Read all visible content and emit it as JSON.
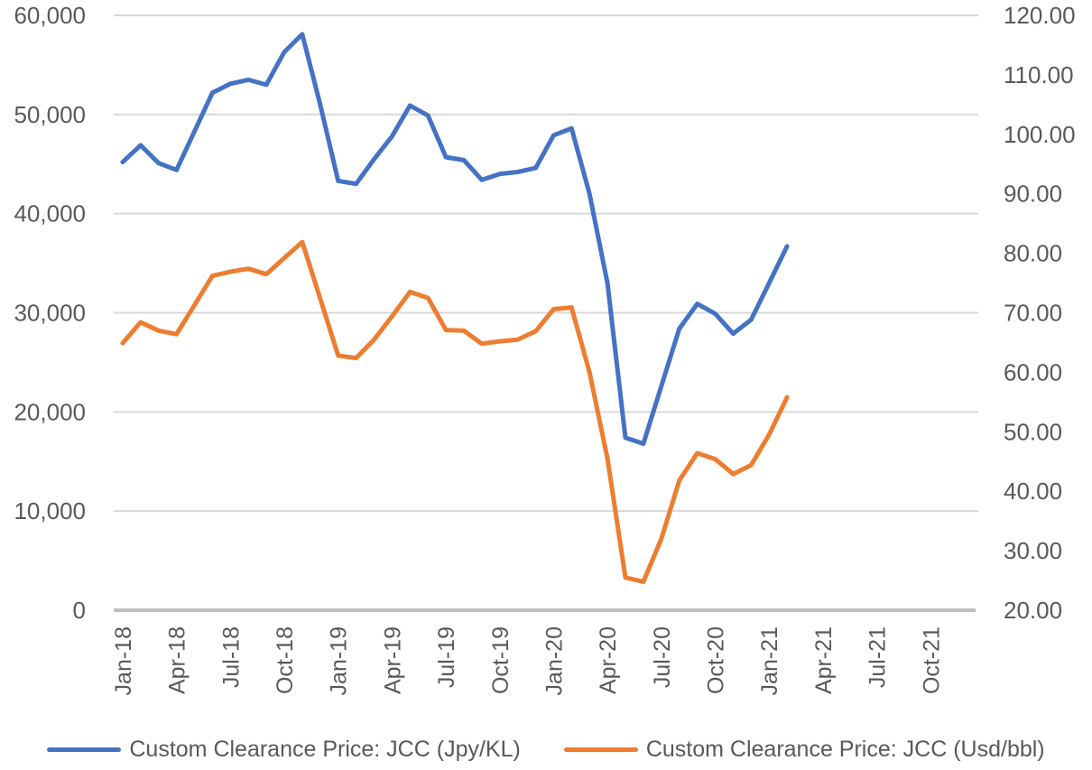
{
  "chart_data": {
    "type": "line",
    "categories": [
      "Jan-18",
      "Feb-18",
      "Mar-18",
      "Apr-18",
      "May-18",
      "Jun-18",
      "Jul-18",
      "Aug-18",
      "Sep-18",
      "Oct-18",
      "Nov-18",
      "Dec-18",
      "Jan-19",
      "Feb-19",
      "Mar-19",
      "Apr-19",
      "May-19",
      "Jun-19",
      "Jul-19",
      "Aug-19",
      "Sep-19",
      "Oct-19",
      "Nov-19",
      "Dec-19",
      "Jan-20",
      "Feb-20",
      "Mar-20",
      "Apr-20",
      "May-20",
      "Jun-20",
      "Jul-20",
      "Aug-20",
      "Sep-20",
      "Oct-20",
      "Nov-20",
      "Dec-20",
      "Jan-21",
      "Feb-21",
      "Mar-21",
      "Apr-21",
      "May-21",
      "Jun-21",
      "Jul-21",
      "Aug-21",
      "Sep-21",
      "Oct-21",
      "Nov-21",
      "Dec-21"
    ],
    "series": [
      {
        "name": "Custom Clearance Price: JCC (Jpy/KL)",
        "axis": "left",
        "color": "#4472C4",
        "values": [
          45200,
          46900,
          45100,
          44400,
          48300,
          52200,
          53100,
          53500,
          53000,
          56300,
          58100,
          51000,
          43300,
          43000,
          45500,
          47800,
          50900,
          49900,
          45700,
          45400,
          43400,
          44000,
          44200,
          44600,
          47900,
          48600,
          42000,
          33000,
          17400,
          16800,
          22600,
          28400,
          30900,
          29900,
          27900,
          29300,
          33000,
          36700
        ]
      },
      {
        "name": "Custom Clearance Price: JCC (Usd/bbl)",
        "axis": "right",
        "color": "#ED7D31",
        "values": [
          64.9,
          68.4,
          67.0,
          66.4,
          71.3,
          76.2,
          76.9,
          77.4,
          76.5,
          79.2,
          81.9,
          72.4,
          62.8,
          62.4,
          65.5,
          69.4,
          73.5,
          72.5,
          67.1,
          67.0,
          64.8,
          65.2,
          65.5,
          66.9,
          70.6,
          70.9,
          60.0,
          45.5,
          25.5,
          24.8,
          32.0,
          41.8,
          46.4,
          45.4,
          42.9,
          44.4,
          49.5,
          55.8
        ]
      }
    ],
    "left_axis": {
      "min": 0,
      "max": 60000,
      "step": 10000,
      "tick_labels": [
        "60,000",
        "50,000",
        "40,000",
        "30,000",
        "20,000",
        "10,000",
        "0"
      ]
    },
    "right_axis": {
      "min": 20,
      "max": 120,
      "step": 10,
      "tick_labels": [
        "120.00",
        "110.00",
        "100.00",
        "90.00",
        "80.00",
        "70.00",
        "60.00",
        "50.00",
        "40.00",
        "30.00",
        "20.00"
      ]
    },
    "x_axis": {
      "label_every": 3,
      "tick_labels": [
        "Jan-18",
        "Apr-18",
        "Jul-18",
        "Oct-18",
        "Jan-19",
        "Apr-19",
        "Jul-19",
        "Oct-19",
        "Jan-20",
        "Apr-20",
        "Jul-20",
        "Oct-20",
        "Jan-21",
        "Apr-21",
        "Jul-21",
        "Oct-21"
      ]
    },
    "grid": true,
    "legend_position": "bottom"
  },
  "colors": {
    "series_jpy": "#4472C4",
    "series_usd": "#ED7D31",
    "gridline": "#D9D9D9",
    "axis_line": "#BFBFBF",
    "text": "#595959",
    "background": "#FFFFFF"
  }
}
